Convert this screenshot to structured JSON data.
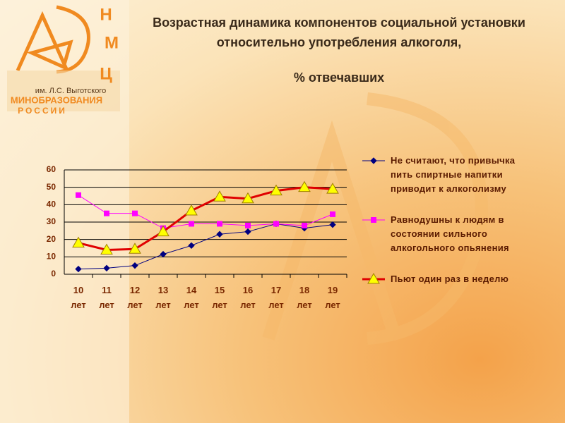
{
  "logo": {
    "letters": [
      "Н",
      "М",
      "Ц"
    ],
    "line1": "им. Л.С. Выготского",
    "line2": "МИНОБРАЗОВАНИЯ",
    "line3": "РОССИИ"
  },
  "chart_data": {
    "type": "line",
    "title": "Возрастная динамика компонентов социальной установки относительно употребления алкоголя,",
    "subtitle": "% отвечавших",
    "categories": [
      "10 лет",
      "11 лет",
      "12 лет",
      "13 лет",
      "14 лет",
      "15 лет",
      "16 лет",
      "17 лет",
      "18 лет",
      "19 лет"
    ],
    "ylim": [
      0,
      60
    ],
    "yticks": [
      0,
      10,
      20,
      30,
      40,
      50,
      60
    ],
    "grid": true,
    "legend": "right",
    "series": [
      {
        "name": "Не считают, что привычка пить спиртные напитки приводит к алкоголизму",
        "color": "#000080",
        "marker": "diamond",
        "marker_fill": "#000080",
        "values": [
          3,
          3.5,
          5,
          11.5,
          16.5,
          23,
          24.5,
          29,
          26.5,
          28.5
        ]
      },
      {
        "name": "Равнодушны к людям в состоянии сильного алкогольного опьянения",
        "color": "#ff00ff",
        "marker": "square",
        "marker_fill": "#ff00ff",
        "values": [
          45.5,
          35,
          35,
          26.5,
          29,
          29,
          28,
          29,
          28,
          34.5
        ]
      },
      {
        "name": "Пьют один раз в неделю",
        "color": "#e00000",
        "marker": "triangle",
        "marker_fill": "#ffff00",
        "values": [
          18,
          14,
          14.5,
          24.5,
          36.5,
          44.5,
          43.5,
          48,
          50,
          49
        ]
      }
    ]
  }
}
